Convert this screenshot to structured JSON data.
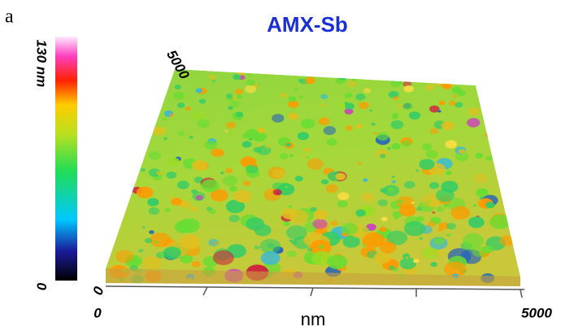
{
  "panel_label": "a",
  "title": "AMX-Sb",
  "colorbar": {
    "top_label": "130 nm",
    "bottom_label": "0"
  },
  "axes": {
    "back_left_label": "5000",
    "left_front_label": "0",
    "x_start_label": "0",
    "x_end_label": "5000",
    "x_unit": "nm"
  }
}
